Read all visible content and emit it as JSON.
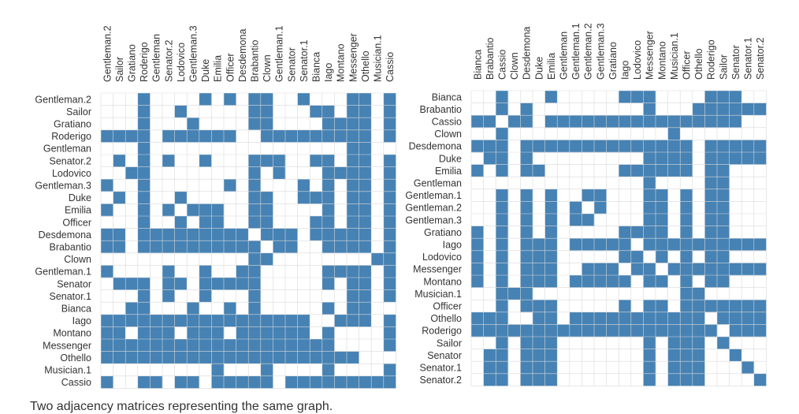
{
  "caption": "Two adjacency matrices representing the same graph.",
  "colors": {
    "filled": "#4682b4",
    "empty": "#ffffff",
    "grid": "#d9d9d9"
  },
  "chart_data": [
    {
      "type": "heatmap",
      "title": "",
      "labels": [
        "Gentleman.2",
        "Sailor",
        "Gratiano",
        "Roderigo",
        "Gentleman",
        "Senator.2",
        "Lodovico",
        "Gentleman.3",
        "Duke",
        "Emilia",
        "Officer",
        "Desdemona",
        "Brabantio",
        "Clown",
        "Gentleman.1",
        "Senator",
        "Senator.1",
        "Bianca",
        "Iago",
        "Montano",
        "Messenger",
        "Othello",
        "Musician.1",
        "Cassio"
      ],
      "rows": [
        "000100001010110010001101",
        "000100100000110001101101",
        "000100010000110000111101",
        "111101111110011111111101",
        "000100000000000000001100",
        "010101001000111001101101",
        "001100000000101000111101",
        "100100000010100010101101",
        "010100100000110011101101",
        "100101011100110000101101",
        "000100101100110001101101",
        "110111111111011101111101",
        "110111111111101100111101",
        "000000000000110000000011",
        "100001001001100000111101",
        "011101101111100000101101",
        "000101001000100000001101",
        "001100010010100000101100",
        "111111111111111110011101",
        "110111011101111110100001",
        "111111111111111111100001",
        "111111111111111111111000",
        "000000000100010000100001",
        "100110110111110111111111"
      ]
    },
    {
      "type": "heatmap",
      "title": "",
      "labels": [
        "Bianca",
        "Brabantio",
        "Cassio",
        "Clown",
        "Desdemona",
        "Duke",
        "Emilia",
        "Gentleman",
        "Gentleman.1",
        "Gentleman.2",
        "Gentleman.3",
        "Gratiano",
        "Iago",
        "Lodovico",
        "Messenger",
        "Montano",
        "Musician.1",
        "Officer",
        "Othello",
        "Roderigo",
        "Sailor",
        "Senator",
        "Senator.1",
        "Senator.2"
      ],
      "rows": [
        "001000100000111000011100",
        "001010000000001000111111",
        "110110111111111111111100",
        "001000000000000010000000",
        "111011111111111111011111",
        "011010000000001111011111",
        "101011000000111111011000",
        "000000000000001000011000",
        "001010100110001101011000",
        "001010101010001101011000",
        "001010101100001101011000",
        "101010100000111101011000",
        "101011101111101111111111",
        "101011100000110101011000",
        "101011100111011011111111",
        "101011101111101101011000",
        "001110000000000001100000",
        "001011100000101101111111",
        "111001101111111111101111",
        "111111111111111111110111",
        "001011100000001011101000",
        "011011100000001011100100",
        "011011100000001011100010",
        "011011100000001011100001"
      ]
    }
  ]
}
